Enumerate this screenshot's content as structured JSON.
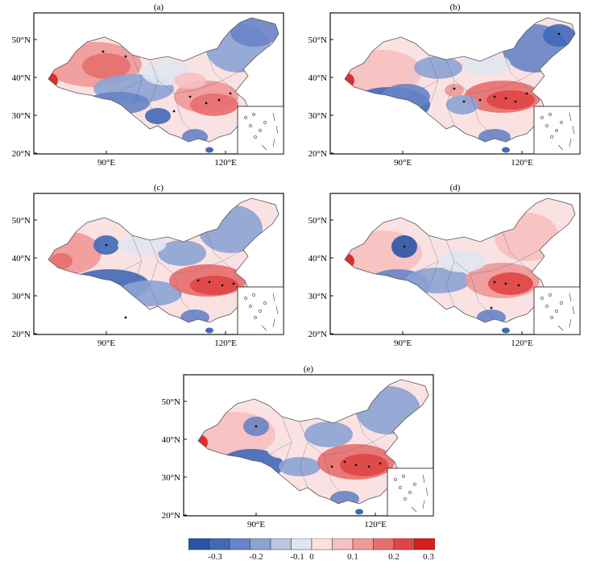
{
  "panels": [
    {
      "label": "(a)"
    },
    {
      "label": "(b)"
    },
    {
      "label": "(c)"
    },
    {
      "label": "(d)"
    },
    {
      "label": "(e)"
    }
  ],
  "axes": {
    "lat_ticks": [
      "50°N",
      "40°N",
      "30°N",
      "20°N"
    ],
    "lon_ticks": [
      "90°E",
      "120°E"
    ]
  },
  "colorbar": {
    "tick_labels": [
      "-0.3",
      "-0.2",
      "-0.1",
      "0",
      "0.1",
      "0.2",
      "0.3"
    ],
    "colors": [
      "#2a55a6",
      "#4169b8",
      "#6784c6",
      "#8ca3d4",
      "#b8c5e3",
      "#e0e5f1",
      "#fbe2e2",
      "#f6c0c0",
      "#ef9898",
      "#e76e6e",
      "#e04545",
      "#d81e1e"
    ]
  }
}
